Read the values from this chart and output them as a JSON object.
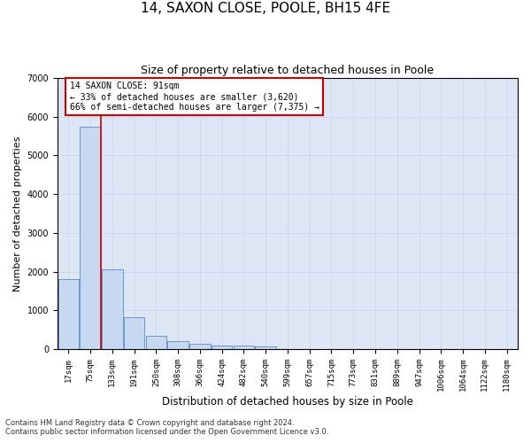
{
  "title": "14, SAXON CLOSE, POOLE, BH15 4FE",
  "subtitle": "Size of property relative to detached houses in Poole",
  "xlabel": "Distribution of detached houses by size in Poole",
  "ylabel": "Number of detached properties",
  "categories": [
    "17sqm",
    "75sqm",
    "133sqm",
    "191sqm",
    "250sqm",
    "308sqm",
    "366sqm",
    "424sqm",
    "482sqm",
    "540sqm",
    "599sqm",
    "657sqm",
    "715sqm",
    "773sqm",
    "831sqm",
    "889sqm",
    "947sqm",
    "1006sqm",
    "1064sqm",
    "1122sqm",
    "1180sqm"
  ],
  "values": [
    1800,
    5750,
    2050,
    820,
    350,
    210,
    130,
    90,
    90,
    60,
    0,
    0,
    0,
    0,
    0,
    0,
    0,
    0,
    0,
    0,
    0
  ],
  "bar_color": "#c6d9f0",
  "bar_edge_color": "#5b8ac7",
  "property_line_color": "#cc0000",
  "annotation_text": "14 SAXON CLOSE: 91sqm\n← 33% of detached houses are smaller (3,620)\n66% of semi-detached houses are larger (7,375) →",
  "annotation_box_color": "#ffffff",
  "annotation_box_edge": "#cc0000",
  "ylim": [
    0,
    7000
  ],
  "yticks": [
    0,
    1000,
    2000,
    3000,
    4000,
    5000,
    6000,
    7000
  ],
  "footer_line1": "Contains HM Land Registry data © Crown copyright and database right 2024.",
  "footer_line2": "Contains public sector information licensed under the Open Government Licence v3.0.",
  "grid_color": "#c8d4e8",
  "background_color": "#dce6f4",
  "title_fontsize": 11,
  "subtitle_fontsize": 9,
  "axis_label_fontsize": 8,
  "tick_fontsize": 6.5,
  "footer_fontsize": 6
}
